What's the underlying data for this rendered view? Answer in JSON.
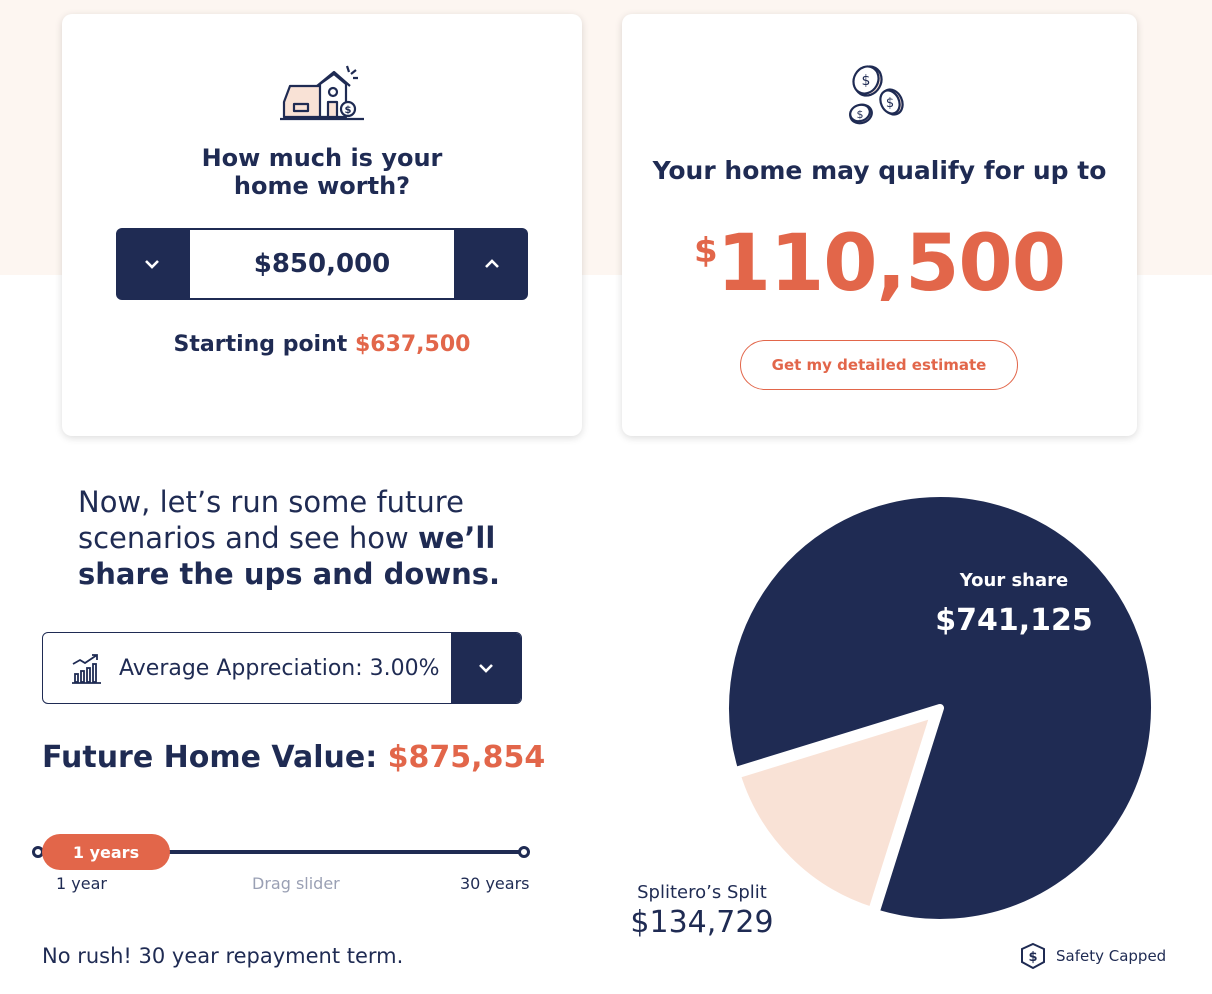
{
  "home_card": {
    "icon": "house-coin-icon",
    "title": "How much is your home worth?",
    "value": "$850,000",
    "decrease_icon": "chevron-down-icon",
    "increase_icon": "chevron-up-icon",
    "starting_label": "Starting point",
    "starting_value": "$637,500"
  },
  "qualify_card": {
    "icon": "coins-icon",
    "title": "Your home may qualify for up to",
    "currency": "$",
    "amount": "110,500",
    "button": "Get my detailed estimate"
  },
  "scenario": {
    "intro_plain": "Now, let’s run some future scenarios and see how ",
    "intro_bold": "we’ll share the ups and downs.",
    "appreciation_label": "Average Appreciation: 3.00%",
    "future_label": "Future Home Value:",
    "future_value": "$875,854",
    "slider": {
      "value_label": "1 years",
      "value": 1,
      "min": 1,
      "max": 30,
      "min_label": "1 year",
      "hint": "Drag slider",
      "max_label": "30 years"
    },
    "note": "No rush! 30 year repayment term."
  },
  "chart_data": {
    "type": "pie",
    "slices": [
      {
        "name": "Your share",
        "label": "$741,125",
        "value": 741125,
        "color": "#1f2b53"
      },
      {
        "name": "Splitero’s Split",
        "label": "$134,729",
        "value": 134729,
        "color": "#f9e2d6"
      }
    ]
  },
  "safety": {
    "icon": "shield-dollar-icon",
    "label": "Safety Capped"
  },
  "colors": {
    "navy": "#1f2b53",
    "accent": "#e2664a",
    "peach": "#f9e2d6",
    "background": "#fdf6f1"
  }
}
